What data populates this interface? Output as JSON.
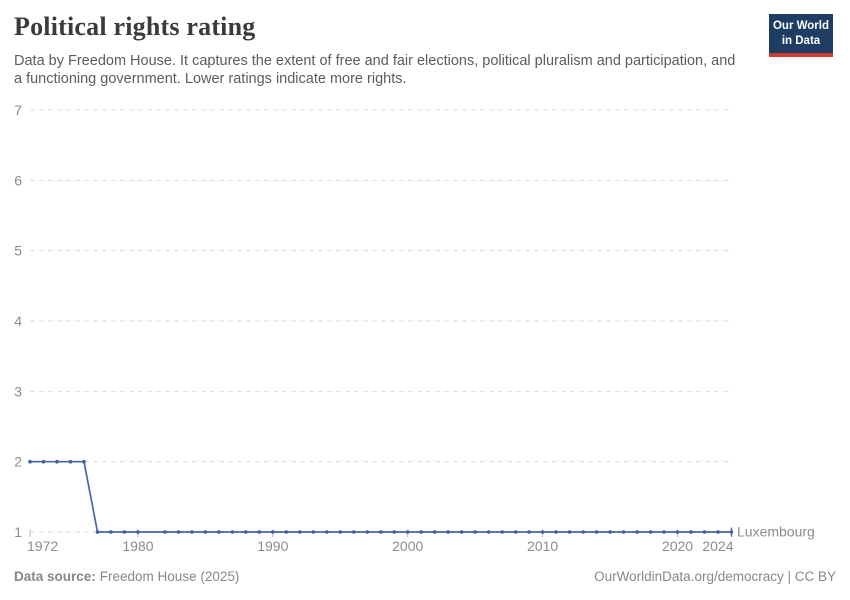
{
  "header": {
    "title": "Political rights rating",
    "subtitle": "Data by Freedom House. It captures the extent of free and fair elections, political pluralism and participation, and a functioning government. Lower ratings indicate more rights."
  },
  "logo": {
    "line1": "Our World",
    "line2": "in Data"
  },
  "footer": {
    "source_label": "Data source:",
    "source_value": "Freedom House (2025)",
    "right": "OurWorldinData.org/democracy | CC BY"
  },
  "colors": {
    "line": "#4668a8",
    "marker": "#3e5f9e",
    "grid": "#dedede",
    "axis_text": "#8c8c8c",
    "tick": "#b3b3b3",
    "entity_label": "#4e73ad",
    "logo_bg": "#1d3d63",
    "logo_stripe": "#cf3b31"
  },
  "chart_data": {
    "type": "line",
    "title": "Political rights rating",
    "xlabel": "",
    "ylabel": "",
    "xlim": [
      1972,
      2024
    ],
    "ylim": [
      1,
      7
    ],
    "x_ticks": [
      1972,
      1980,
      1990,
      2000,
      2010,
      2020,
      2024
    ],
    "y_ticks": [
      1,
      2,
      3,
      4,
      5,
      6,
      7
    ],
    "grid": "horizontal-dashed",
    "legend_position": "end-of-line-label",
    "missing_years": [
      1981
    ],
    "series": [
      {
        "name": "Luxembourg",
        "points": [
          [
            1972,
            2
          ],
          [
            1973,
            2
          ],
          [
            1974,
            2
          ],
          [
            1975,
            2
          ],
          [
            1976,
            2
          ],
          [
            1977,
            1
          ],
          [
            1978,
            1
          ],
          [
            1979,
            1
          ],
          [
            1980,
            1
          ],
          [
            1982,
            1
          ],
          [
            1983,
            1
          ],
          [
            1984,
            1
          ],
          [
            1985,
            1
          ],
          [
            1986,
            1
          ],
          [
            1987,
            1
          ],
          [
            1988,
            1
          ],
          [
            1989,
            1
          ],
          [
            1990,
            1
          ],
          [
            1991,
            1
          ],
          [
            1992,
            1
          ],
          [
            1993,
            1
          ],
          [
            1994,
            1
          ],
          [
            1995,
            1
          ],
          [
            1996,
            1
          ],
          [
            1997,
            1
          ],
          [
            1998,
            1
          ],
          [
            1999,
            1
          ],
          [
            2000,
            1
          ],
          [
            2001,
            1
          ],
          [
            2002,
            1
          ],
          [
            2003,
            1
          ],
          [
            2004,
            1
          ],
          [
            2005,
            1
          ],
          [
            2006,
            1
          ],
          [
            2007,
            1
          ],
          [
            2008,
            1
          ],
          [
            2009,
            1
          ],
          [
            2010,
            1
          ],
          [
            2011,
            1
          ],
          [
            2012,
            1
          ],
          [
            2013,
            1
          ],
          [
            2014,
            1
          ],
          [
            2015,
            1
          ],
          [
            2016,
            1
          ],
          [
            2017,
            1
          ],
          [
            2018,
            1
          ],
          [
            2019,
            1
          ],
          [
            2020,
            1
          ],
          [
            2021,
            1
          ],
          [
            2022,
            1
          ],
          [
            2023,
            1
          ],
          [
            2024,
            1
          ]
        ]
      }
    ]
  }
}
